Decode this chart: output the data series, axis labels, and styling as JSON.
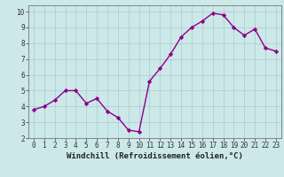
{
  "x": [
    0,
    1,
    2,
    3,
    4,
    5,
    6,
    7,
    8,
    9,
    10,
    11,
    12,
    13,
    14,
    15,
    16,
    17,
    18,
    19,
    20,
    21,
    22,
    23
  ],
  "y": [
    3.8,
    4.0,
    4.4,
    5.0,
    5.0,
    4.2,
    4.5,
    3.7,
    3.3,
    2.5,
    2.4,
    5.6,
    6.4,
    7.3,
    8.4,
    9.0,
    9.4,
    9.9,
    9.8,
    9.0,
    8.5,
    8.9,
    7.7,
    7.5
  ],
  "line_color": "#8B008B",
  "marker": "D",
  "markersize": 2.2,
  "linewidth": 1.0,
  "bg_color": "#cce8e8",
  "grid_color": "#aacccc",
  "ylim": [
    2,
    10.4
  ],
  "xlim": [
    -0.5,
    23.5
  ],
  "yticks": [
    2,
    3,
    4,
    5,
    6,
    7,
    8,
    9,
    10
  ],
  "xticks": [
    0,
    1,
    2,
    3,
    4,
    5,
    6,
    7,
    8,
    9,
    10,
    11,
    12,
    13,
    14,
    15,
    16,
    17,
    18,
    19,
    20,
    21,
    22,
    23
  ],
  "tick_fontsize": 5.5,
  "xlabel": "Windchill (Refroidissement éolien,°C)",
  "xlabel_fontsize": 6.5,
  "spine_color": "#777777"
}
